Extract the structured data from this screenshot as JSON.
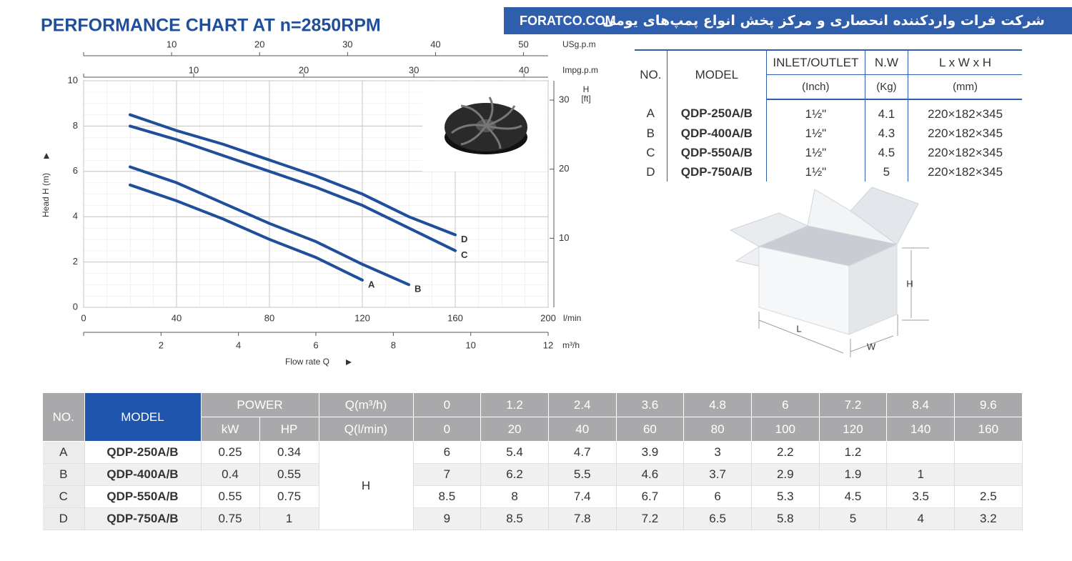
{
  "header": {
    "company": "شرکت فرات واردکننده انحصاری و مرکز پخش انواع پمپ‌های یومی",
    "website": "FORATCO.COM"
  },
  "chart_data": {
    "type": "line",
    "title": "PERFORMANCE CHART AT n=2850RPM",
    "x": [
      20,
      40,
      60,
      80,
      100,
      120,
      140,
      160
    ],
    "xlim": [
      0,
      200
    ],
    "xticks": [
      0,
      40,
      80,
      120,
      160,
      200
    ],
    "x_unit": "l/min",
    "xlabel": "Flow rate Q",
    "ylabel": "Head H (m)",
    "ylim": [
      0,
      10
    ],
    "yticks": [
      0,
      2,
      4,
      6,
      8,
      10
    ],
    "y2label": [
      "H",
      "[ft]"
    ],
    "y2lim": [
      0,
      32.8
    ],
    "y2ticks": [
      10,
      20,
      30
    ],
    "extra_x_axes": [
      {
        "label": "USg.p.m",
        "lim": [
          0,
          52.8
        ],
        "ticks": [
          10,
          20,
          30,
          40,
          50
        ]
      },
      {
        "label": "Impg.p.m",
        "lim": [
          0,
          42.2
        ],
        "ticks": [
          10,
          20,
          30,
          40
        ]
      },
      {
        "label": "m³/h",
        "lim": [
          0,
          12
        ],
        "ticks": [
          2,
          4,
          6,
          8,
          10,
          12
        ]
      }
    ],
    "grid": true,
    "series": [
      {
        "name": "A",
        "color": "#1f4f9a",
        "values": [
          5.4,
          4.7,
          3.9,
          3,
          2.2,
          1.2,
          null,
          null
        ]
      },
      {
        "name": "B",
        "color": "#1f4f9a",
        "values": [
          6.2,
          5.5,
          4.6,
          3.7,
          2.9,
          1.9,
          1,
          null
        ]
      },
      {
        "name": "C",
        "color": "#1f4f9a",
        "values": [
          8,
          7.4,
          6.7,
          6,
          5.3,
          4.5,
          3.5,
          2.5
        ]
      },
      {
        "name": "D",
        "color": "#1f4f9a",
        "values": [
          8.5,
          7.8,
          7.2,
          6.5,
          5.8,
          5,
          4,
          3.2
        ]
      }
    ]
  },
  "spec_table": {
    "headers": [
      "NO.",
      "MODEL",
      "INLET/OUTLET",
      "N.W",
      "L x W x H"
    ],
    "units": [
      "(Inch)",
      "(Kg)",
      "(mm)"
    ],
    "rows": [
      [
        "A",
        "QDP-250A/B",
        "1½\"",
        4.1,
        "220×182×345"
      ],
      [
        "B",
        "QDP-400A/B",
        "1½\"",
        4.3,
        "220×182×345"
      ],
      [
        "C",
        "QDP-550A/B",
        "1½\"",
        4.5,
        "220×182×345"
      ],
      [
        "D",
        "QDP-750A/B",
        "1½\"",
        5,
        "220×182×345"
      ]
    ]
  },
  "box_labels": {
    "height": "H",
    "length": "L",
    "width": "W"
  },
  "perf_table": {
    "headers": {
      "no": "NO.",
      "model": "MODEL",
      "power": "POWER",
      "kw": "kW",
      "hp": "HP",
      "q_m3h": "Q(m³/h)",
      "q_lmin": "Q(l/min)",
      "head": "H"
    },
    "q_m3h": [
      0,
      1.2,
      2.4,
      3.6,
      4.8,
      6,
      7.2,
      8.4,
      9.6
    ],
    "q_lmin": [
      0,
      20,
      40,
      60,
      80,
      100,
      120,
      140,
      160
    ],
    "rows": [
      {
        "no": "A",
        "model": "QDP-250A/B",
        "kw": 0.25,
        "hp": 0.34,
        "head": [
          6,
          5.4,
          4.7,
          3.9,
          3,
          2.2,
          1.2,
          null,
          null
        ]
      },
      {
        "no": "B",
        "model": "QDP-400A/B",
        "kw": 0.4,
        "hp": 0.55,
        "head": [
          7,
          6.2,
          5.5,
          4.6,
          3.7,
          2.9,
          1.9,
          1,
          null
        ]
      },
      {
        "no": "C",
        "model": "QDP-550A/B",
        "kw": 0.55,
        "hp": 0.75,
        "head": [
          8.5,
          8,
          7.4,
          6.7,
          6,
          5.3,
          4.5,
          3.5,
          2.5
        ]
      },
      {
        "no": "D",
        "model": "QDP-750A/B",
        "kw": 0.75,
        "hp": 1,
        "head": [
          9,
          8.5,
          7.8,
          7.2,
          6.5,
          5.8,
          5,
          4,
          3.2
        ]
      }
    ]
  }
}
